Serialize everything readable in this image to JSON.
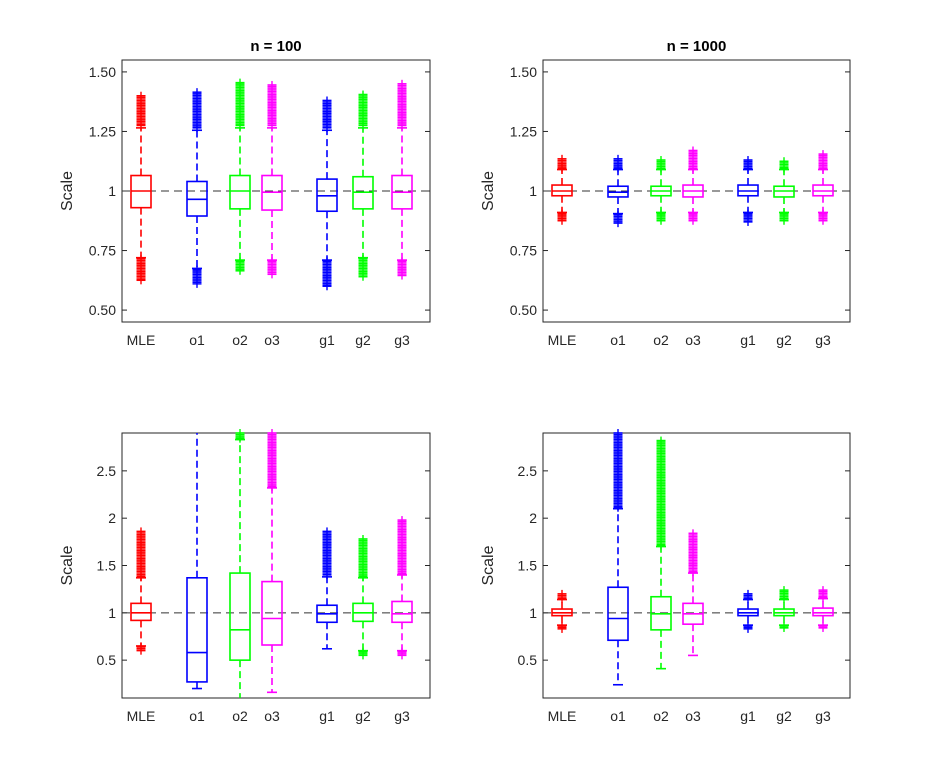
{
  "chart_data": [
    {
      "type": "box",
      "title": "n = 100",
      "ylabel": "Scale",
      "ylim": [
        0.45,
        1.55
      ],
      "yticks": [
        0.5,
        0.75,
        1,
        1.25,
        1.5
      ],
      "ytick_labels": [
        "0.50",
        "0.75",
        "1",
        "1.25",
        "1.50"
      ],
      "reference_line": 1,
      "groups": [
        {
          "label": "MLE",
          "color": "#ff0000",
          "q1": 0.93,
          "median": 1.0,
          "q3": 1.065,
          "whisker_low": 0.72,
          "whisker_high": 1.265,
          "outlier_low": [
            0.625,
            0.715
          ],
          "outlier_high": [
            1.275,
            1.4
          ]
        },
        {
          "label": "o1",
          "color": "#0000ff",
          "q1": 0.895,
          "median": 0.965,
          "q3": 1.04,
          "whisker_low": 0.675,
          "whisker_high": 1.255,
          "outlier_low": [
            0.61,
            0.67
          ],
          "outlier_high": [
            1.265,
            1.415
          ]
        },
        {
          "label": "o2",
          "color": "#00ff00",
          "q1": 0.925,
          "median": 1.0,
          "q3": 1.065,
          "whisker_low": 0.71,
          "whisker_high": 1.265,
          "outlier_low": [
            0.665,
            0.705
          ],
          "outlier_high": [
            1.275,
            1.455
          ]
        },
        {
          "label": "o3",
          "color": "#ff00ff",
          "q1": 0.92,
          "median": 0.995,
          "q3": 1.065,
          "whisker_low": 0.71,
          "whisker_high": 1.265,
          "outlier_low": [
            0.65,
            0.705
          ],
          "outlier_high": [
            1.275,
            1.445
          ]
        },
        {
          "label": "g1",
          "color": "#0000ff",
          "q1": 0.915,
          "median": 0.98,
          "q3": 1.05,
          "whisker_low": 0.71,
          "whisker_high": 1.255,
          "outlier_low": [
            0.6,
            0.705
          ],
          "outlier_high": [
            1.265,
            1.38
          ]
        },
        {
          "label": "g2",
          "color": "#00ff00",
          "q1": 0.925,
          "median": 0.995,
          "q3": 1.06,
          "whisker_low": 0.72,
          "whisker_high": 1.265,
          "outlier_low": [
            0.64,
            0.715
          ],
          "outlier_high": [
            1.275,
            1.405
          ]
        },
        {
          "label": "g3",
          "color": "#ff00ff",
          "q1": 0.925,
          "median": 0.995,
          "q3": 1.065,
          "whisker_low": 0.71,
          "whisker_high": 1.265,
          "outlier_low": [
            0.645,
            0.705
          ],
          "outlier_high": [
            1.275,
            1.45
          ]
        }
      ]
    },
    {
      "type": "box",
      "title": "n = 1000",
      "ylabel": "Scale",
      "ylim": [
        0.45,
        1.55
      ],
      "yticks": [
        0.5,
        0.75,
        1,
        1.25,
        1.5
      ],
      "ytick_labels": [
        "0.50",
        "0.75",
        "1",
        "1.25",
        "1.50"
      ],
      "reference_line": 1,
      "groups": [
        {
          "label": "MLE",
          "color": "#ff0000",
          "q1": 0.98,
          "median": 1.0,
          "q3": 1.025,
          "whisker_low": 0.91,
          "whisker_high": 1.09,
          "outlier_low": [
            0.875,
            0.905
          ],
          "outlier_high": [
            1.095,
            1.135
          ]
        },
        {
          "label": "o1",
          "color": "#0000ff",
          "q1": 0.975,
          "median": 0.995,
          "q3": 1.02,
          "whisker_low": 0.905,
          "whisker_high": 1.09,
          "outlier_low": [
            0.865,
            0.9
          ],
          "outlier_high": [
            1.095,
            1.135
          ]
        },
        {
          "label": "o2",
          "color": "#00ff00",
          "q1": 0.98,
          "median": 1.0,
          "q3": 1.02,
          "whisker_low": 0.91,
          "whisker_high": 1.09,
          "outlier_low": [
            0.875,
            0.905
          ],
          "outlier_high": [
            1.095,
            1.13
          ]
        },
        {
          "label": "o3",
          "color": "#ff00ff",
          "q1": 0.975,
          "median": 1.0,
          "q3": 1.025,
          "whisker_low": 0.91,
          "whisker_high": 1.09,
          "outlier_low": [
            0.875,
            0.905
          ],
          "outlier_high": [
            1.095,
            1.17
          ]
        },
        {
          "label": "g1",
          "color": "#0000ff",
          "q1": 0.98,
          "median": 1.0,
          "q3": 1.025,
          "whisker_low": 0.91,
          "whisker_high": 1.09,
          "outlier_low": [
            0.87,
            0.905
          ],
          "outlier_high": [
            1.095,
            1.13
          ]
        },
        {
          "label": "g2",
          "color": "#00ff00",
          "q1": 0.975,
          "median": 1.0,
          "q3": 1.02,
          "whisker_low": 0.91,
          "whisker_high": 1.09,
          "outlier_low": [
            0.875,
            0.905
          ],
          "outlier_high": [
            1.095,
            1.125
          ]
        },
        {
          "label": "g3",
          "color": "#ff00ff",
          "q1": 0.98,
          "median": 1.0,
          "q3": 1.025,
          "whisker_low": 0.91,
          "whisker_high": 1.09,
          "outlier_low": [
            0.875,
            0.905
          ],
          "outlier_high": [
            1.095,
            1.155
          ]
        }
      ]
    },
    {
      "type": "box",
      "title": "",
      "ylabel": "Scale",
      "ylim": [
        0.1,
        2.9
      ],
      "yticks": [
        0.5,
        1,
        1.5,
        2,
        2.5
      ],
      "ytick_labels": [
        "0.5",
        "1",
        "1.5",
        "2",
        "2.5"
      ],
      "reference_line": 1,
      "groups": [
        {
          "label": "MLE",
          "color": "#ff0000",
          "q1": 0.92,
          "median": 1.0,
          "q3": 1.1,
          "whisker_low": 0.65,
          "whisker_high": 1.37,
          "outlier_low": [
            0.6,
            0.64
          ],
          "outlier_high": [
            1.38,
            1.86
          ]
        },
        {
          "label": "o1",
          "color": "#0000ff",
          "q1": 0.27,
          "median": 0.58,
          "q3": 1.37,
          "whisker_low": 0.2,
          "whisker_high": 2.9,
          "outlier_low": [],
          "outlier_high": []
        },
        {
          "label": "o2",
          "color": "#00ff00",
          "q1": 0.5,
          "median": 0.82,
          "q3": 1.42,
          "whisker_low": 0.1,
          "whisker_high": 2.83,
          "outlier_low": [],
          "outlier_high": [
            2.84,
            2.9
          ]
        },
        {
          "label": "o3",
          "color": "#ff00ff",
          "q1": 0.66,
          "median": 0.94,
          "q3": 1.33,
          "whisker_low": 0.16,
          "whisker_high": 2.32,
          "outlier_low": [],
          "outlier_high": [
            2.33,
            2.9
          ]
        },
        {
          "label": "g1",
          "color": "#0000ff",
          "q1": 0.9,
          "median": 0.99,
          "q3": 1.08,
          "whisker_low": 0.62,
          "whisker_high": 1.38,
          "outlier_low": [],
          "outlier_high": [
            1.4,
            1.86
          ]
        },
        {
          "label": "g2",
          "color": "#00ff00",
          "q1": 0.91,
          "median": 1.0,
          "q3": 1.1,
          "whisker_low": 0.6,
          "whisker_high": 1.37,
          "outlier_low": [
            0.55,
            0.59
          ],
          "outlier_high": [
            1.38,
            1.78
          ]
        },
        {
          "label": "g3",
          "color": "#ff00ff",
          "q1": 0.9,
          "median": 0.99,
          "q3": 1.12,
          "whisker_low": 0.6,
          "whisker_high": 1.4,
          "outlier_low": [
            0.55,
            0.59
          ],
          "outlier_high": [
            1.41,
            1.98
          ]
        }
      ]
    },
    {
      "type": "box",
      "title": "",
      "ylabel": "Scale",
      "ylim": [
        0.1,
        2.9
      ],
      "yticks": [
        0.5,
        1,
        1.5,
        2,
        2.5
      ],
      "ytick_labels": [
        "0.5",
        "1",
        "1.5",
        "2",
        "2.5"
      ],
      "reference_line": 1,
      "groups": [
        {
          "label": "MLE",
          "color": "#ff0000",
          "q1": 0.97,
          "median": 1.0,
          "q3": 1.04,
          "whisker_low": 0.87,
          "whisker_high": 1.14,
          "outlier_low": [
            0.83,
            0.86
          ],
          "outlier_high": [
            1.15,
            1.2
          ]
        },
        {
          "label": "o1",
          "color": "#0000ff",
          "q1": 0.71,
          "median": 0.94,
          "q3": 1.27,
          "whisker_low": 0.24,
          "whisker_high": 2.1,
          "outlier_low": [],
          "outlier_high": [
            2.11,
            2.9
          ]
        },
        {
          "label": "o2",
          "color": "#00ff00",
          "q1": 0.82,
          "median": 0.99,
          "q3": 1.17,
          "whisker_low": 0.41,
          "whisker_high": 1.7,
          "outlier_low": [],
          "outlier_high": [
            1.71,
            2.82
          ]
        },
        {
          "label": "o3",
          "color": "#ff00ff",
          "q1": 0.88,
          "median": 0.99,
          "q3": 1.1,
          "whisker_low": 0.55,
          "whisker_high": 1.42,
          "outlier_low": [],
          "outlier_high": [
            1.43,
            1.84
          ]
        },
        {
          "label": "g1",
          "color": "#0000ff",
          "q1": 0.97,
          "median": 1.0,
          "q3": 1.04,
          "whisker_low": 0.87,
          "whisker_high": 1.14,
          "outlier_low": [
            0.83,
            0.86
          ],
          "outlier_high": [
            1.15,
            1.2
          ]
        },
        {
          "label": "g2",
          "color": "#00ff00",
          "q1": 0.97,
          "median": 1.0,
          "q3": 1.04,
          "whisker_low": 0.87,
          "whisker_high": 1.14,
          "outlier_low": [
            0.84,
            0.86
          ],
          "outlier_high": [
            1.15,
            1.24
          ]
        },
        {
          "label": "g3",
          "color": "#ff00ff",
          "q1": 0.97,
          "median": 1.0,
          "q3": 1.05,
          "whisker_low": 0.87,
          "whisker_high": 1.15,
          "outlier_low": [
            0.84,
            0.86
          ],
          "outlier_high": [
            1.16,
            1.24
          ]
        }
      ]
    }
  ]
}
